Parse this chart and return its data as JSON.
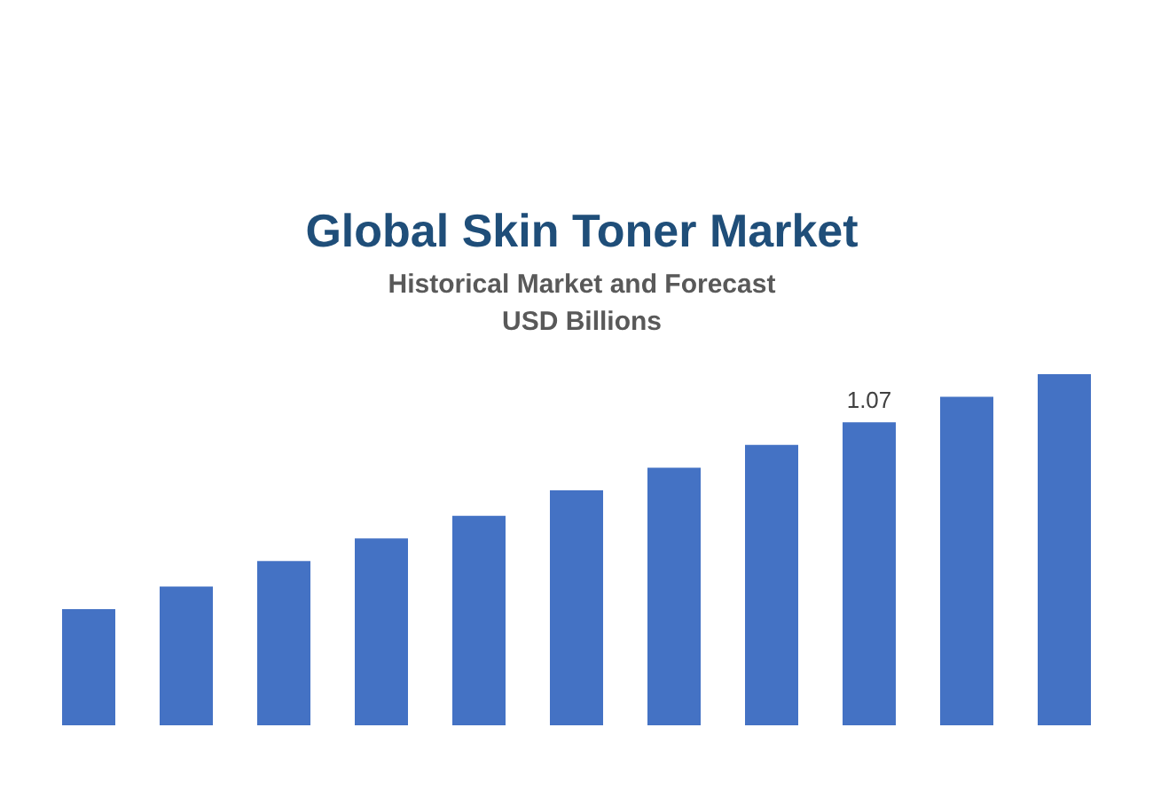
{
  "chart_data": {
    "type": "bar",
    "title": "Global Skin Toner Market",
    "subtitle": "Historical Market and Forecast\nUSD Billions",
    "categories": [
      null,
      null,
      null,
      null,
      null,
      null,
      null,
      null,
      null,
      null,
      null
    ],
    "values": [
      0.41,
      0.49,
      0.58,
      0.66,
      0.74,
      0.83,
      0.91,
      0.99,
      1.07,
      1.16,
      1.24
    ],
    "color": "#4472c4",
    "tick_labels": false,
    "value_labels": [
      null,
      null,
      null,
      null,
      null,
      null,
      null,
      null,
      "1.07",
      null,
      null
    ]
  }
}
